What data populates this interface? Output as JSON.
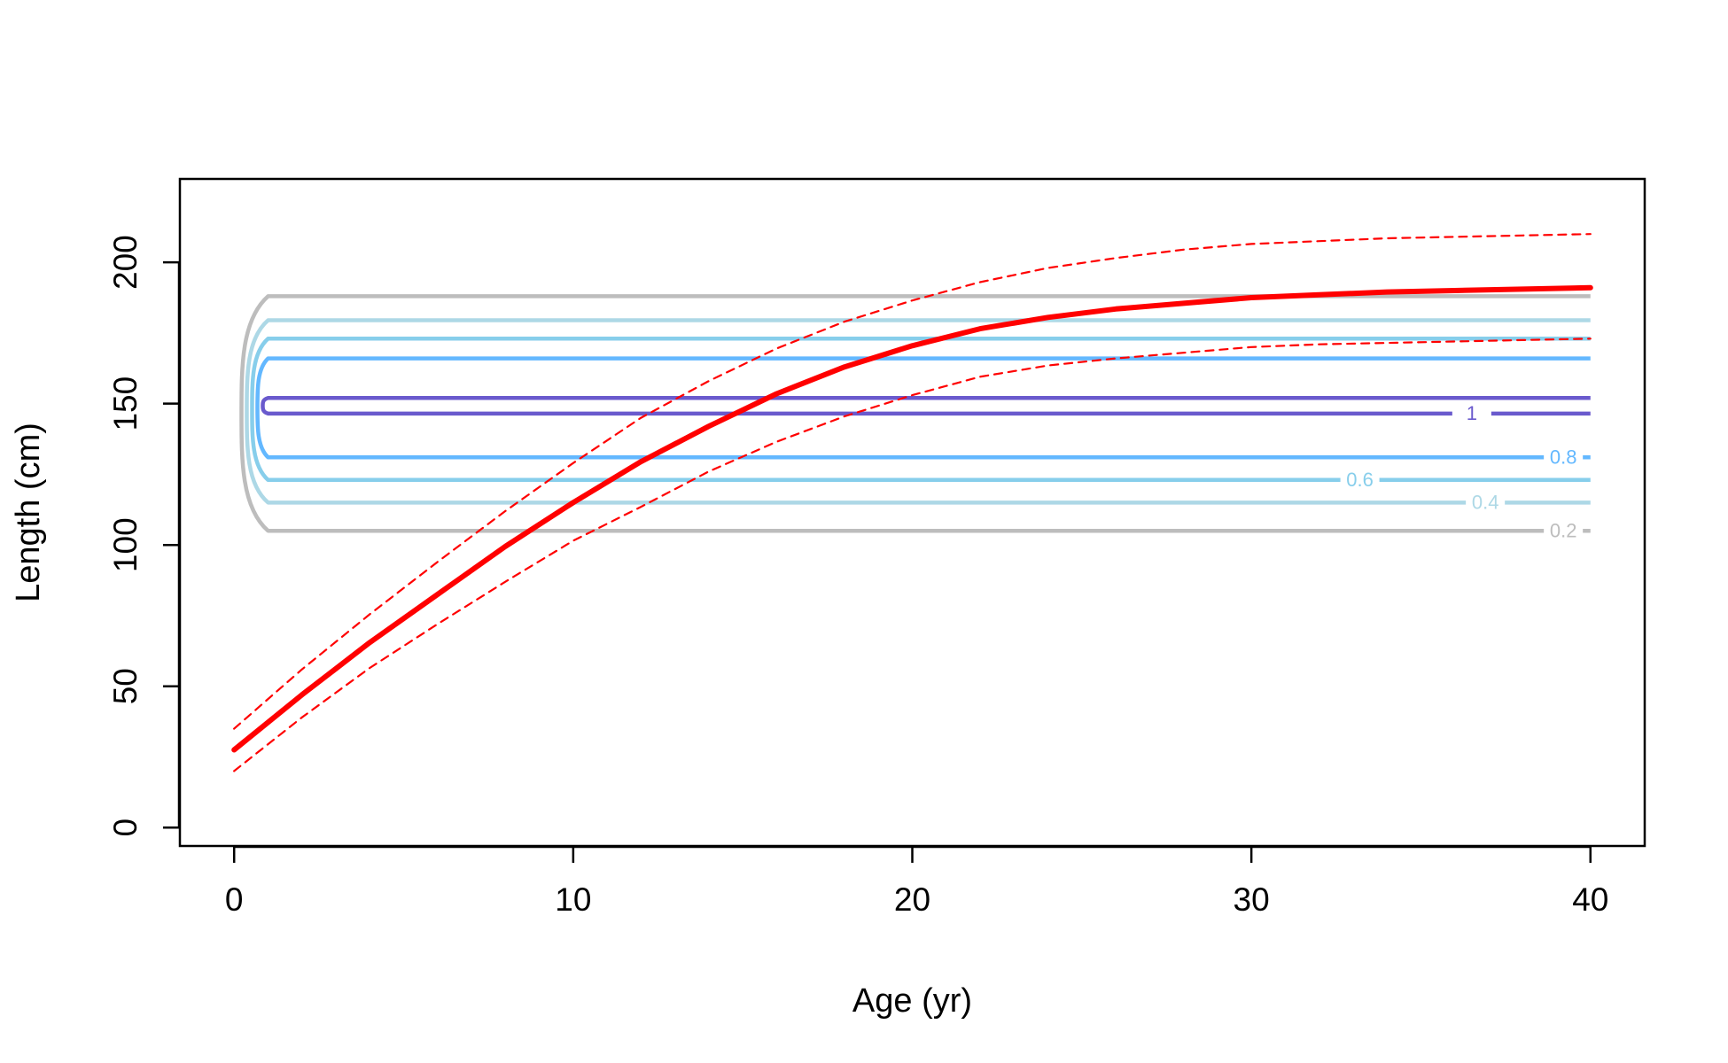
{
  "chart_data": {
    "type": "line",
    "xlabel": "Age (yr)",
    "ylabel": "Length (cm)",
    "xlim": [
      -1.6,
      41.6
    ],
    "ylim": [
      -6.5,
      229.5
    ],
    "x_ticks": [
      0,
      10,
      20,
      30,
      40
    ],
    "y_ticks": [
      0,
      50,
      100,
      150,
      200
    ],
    "grid": false,
    "legend": "none",
    "contours": [
      {
        "label": "0.2",
        "color": "#bdbdbd",
        "y_low": 105,
        "y_high": 188,
        "label_x": 39.2,
        "label_y": 104.5
      },
      {
        "label": "0.4",
        "color": "#add8e6",
        "y_low": 115,
        "y_high": 179.5,
        "label_x": 36.9,
        "label_y": 114.5
      },
      {
        "label": "0.6",
        "color": "#87ceeb",
        "y_low": 123,
        "y_high": 173,
        "label_x": 33.2,
        "label_y": 122.5
      },
      {
        "label": "0.8",
        "color": "#63b8ff",
        "y_low": 131,
        "y_high": 166,
        "label_x": 39.2,
        "label_y": 130.5
      },
      {
        "label": "1",
        "color": "#6a5acd",
        "y_low": 146.5,
        "y_high": 152,
        "label_x": 36.5,
        "label_y": 146
      }
    ],
    "series": [
      {
        "color": "#ff0000",
        "style": "solid",
        "x": [
          0,
          2,
          4,
          6,
          8,
          10,
          12,
          14,
          16,
          18,
          20,
          22,
          24,
          26,
          28,
          30,
          32,
          34,
          36,
          38,
          40
        ],
        "values": [
          27.5,
          47,
          65.5,
          82.5,
          99.5,
          115,
          129.5,
          142,
          153.5,
          163,
          170.5,
          176.5,
          180.5,
          183.5,
          185.5,
          187.5,
          188.5,
          189.5,
          190,
          190.5,
          191
        ]
      },
      {
        "color": "#ff0000",
        "style": "dashed",
        "x": [
          0,
          2,
          4,
          6,
          8,
          10,
          12,
          14,
          16,
          18,
          20,
          22,
          24,
          26,
          28,
          30,
          32,
          34,
          36,
          38,
          40
        ],
        "values": [
          35,
          56,
          75.5,
          94,
          112,
          129,
          145,
          158,
          169.5,
          179,
          186.5,
          193,
          198,
          201.5,
          204.5,
          206.5,
          207.5,
          208.5,
          209,
          209.5,
          210
        ]
      },
      {
        "color": "#ff0000",
        "style": "dashed",
        "x": [
          0,
          2,
          4,
          6,
          8,
          10,
          12,
          14,
          16,
          18,
          20,
          22,
          24,
          26,
          28,
          30,
          32,
          34,
          36,
          38,
          40
        ],
        "values": [
          20,
          39,
          56.5,
          72,
          87,
          101.5,
          113.5,
          126,
          136.5,
          145.5,
          153,
          159.5,
          163.5,
          166,
          168,
          170,
          171,
          171.5,
          172,
          172.5,
          173
        ]
      }
    ]
  }
}
